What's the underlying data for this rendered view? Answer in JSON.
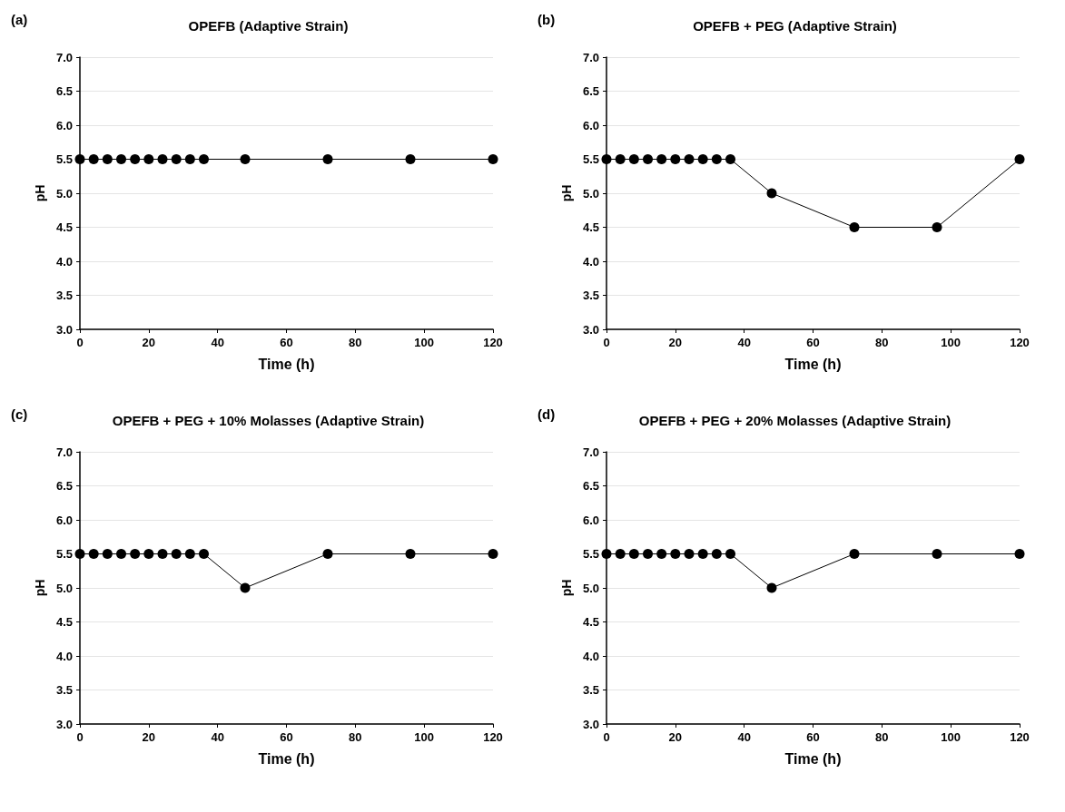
{
  "chart_data": [
    {
      "type": "line",
      "title": "OPEFB (Adaptive Strain)",
      "annotations": [
        "(a)"
      ],
      "xlabel": "Time (h)",
      "ylabel": "pH",
      "x": [
        0,
        4,
        8,
        12,
        16,
        20,
        24,
        28,
        32,
        36,
        48,
        72,
        96,
        120
      ],
      "series": [
        {
          "color": "#000000",
          "values": [
            5.5,
            5.5,
            5.5,
            5.5,
            5.5,
            5.5,
            5.5,
            5.5,
            5.5,
            5.5,
            5.5,
            5.5,
            5.5,
            5.5
          ]
        }
      ],
      "xlim": [
        0,
        120
      ],
      "xticks": [
        0,
        20,
        40,
        60,
        80,
        100,
        120
      ],
      "ylim": [
        3,
        7
      ],
      "yticks": [
        {
          "value": 3,
          "label": "3.0"
        },
        3.5,
        {
          "value": 4,
          "label": "4.0"
        },
        4.5,
        {
          "value": 5,
          "label": "5.0"
        },
        5.5,
        {
          "value": 6,
          "label": "6.0"
        },
        6.5,
        {
          "value": 7,
          "label": "7.0"
        }
      ],
      "grid": "y",
      "marker": "circle",
      "line_style": "solid"
    },
    {
      "type": "line",
      "title": "OPEFB + PEG (Adaptive Strain)",
      "annotations": [
        "(b)"
      ],
      "xlabel": "Time (h)",
      "ylabel": "pH",
      "x": [
        0,
        4,
        8,
        12,
        16,
        20,
        24,
        28,
        32,
        36,
        48,
        72,
        96,
        120
      ],
      "series": [
        {
          "color": "#000000",
          "values": [
            5.5,
            5.5,
            5.5,
            5.5,
            5.5,
            5.5,
            5.5,
            5.5,
            5.5,
            5.5,
            5.0,
            4.5,
            4.5,
            5.5
          ]
        }
      ],
      "xlim": [
        0,
        120
      ],
      "xticks": [
        0,
        20,
        40,
        60,
        80,
        100,
        120
      ],
      "ylim": [
        3,
        7
      ],
      "yticks": [
        {
          "value": 3,
          "label": "3.0"
        },
        3.5,
        {
          "value": 4,
          "label": "4.0"
        },
        4.5,
        {
          "value": 5,
          "label": "5.0"
        },
        5.5,
        {
          "value": 6,
          "label": "6.0"
        },
        6.5,
        {
          "value": 7,
          "label": "7.0"
        }
      ],
      "grid": "y",
      "marker": "circle",
      "line_style": "solid"
    },
    {
      "type": "line",
      "title": "OPEFB + PEG + 10% Molasses (Adaptive Strain)",
      "annotations": [
        "(c)"
      ],
      "xlabel": "Time (h)",
      "ylabel": "pH",
      "x": [
        0,
        4,
        8,
        12,
        16,
        20,
        24,
        28,
        32,
        36,
        48,
        72,
        96,
        120
      ],
      "series": [
        {
          "color": "#000000",
          "values": [
            5.5,
            5.5,
            5.5,
            5.5,
            5.5,
            5.5,
            5.5,
            5.5,
            5.5,
            5.5,
            5.0,
            5.5,
            5.5,
            5.5
          ]
        }
      ],
      "xlim": [
        0,
        120
      ],
      "xticks": [
        0,
        20,
        40,
        60,
        80,
        100,
        120
      ],
      "ylim": [
        3,
        7
      ],
      "yticks": [
        {
          "value": 3,
          "label": "3.0"
        },
        3.5,
        {
          "value": 4,
          "label": "4.0"
        },
        4.5,
        {
          "value": 5,
          "label": "5.0"
        },
        5.5,
        {
          "value": 6,
          "label": "6.0"
        },
        6.5,
        {
          "value": 7,
          "label": "7.0"
        }
      ],
      "grid": "y",
      "marker": "circle",
      "line_style": "solid"
    },
    {
      "type": "line",
      "title": "OPEFB + PEG + 20% Molasses (Adaptive Strain)",
      "annotations": [
        "(d)"
      ],
      "xlabel": "Time (h)",
      "ylabel": "pH",
      "x": [
        0,
        4,
        8,
        12,
        16,
        20,
        24,
        28,
        32,
        36,
        48,
        72,
        96,
        120
      ],
      "series": [
        {
          "color": "#000000",
          "values": [
            5.5,
            5.5,
            5.5,
            5.5,
            5.5,
            5.5,
            5.5,
            5.5,
            5.5,
            5.5,
            5.0,
            5.5,
            5.5,
            5.5
          ]
        }
      ],
      "xlim": [
        0,
        120
      ],
      "xticks": [
        0,
        20,
        40,
        60,
        80,
        100,
        120
      ],
      "ylim": [
        3,
        7
      ],
      "yticks": [
        {
          "value": 3,
          "label": "3.0"
        },
        3.5,
        {
          "value": 4,
          "label": "4.0"
        },
        4.5,
        {
          "value": 5,
          "label": "5.0"
        },
        5.5,
        {
          "value": 6,
          "label": "6.0"
        },
        6.5,
        {
          "value": 7,
          "label": "7.0"
        }
      ],
      "grid": "y",
      "marker": "circle",
      "line_style": "solid"
    }
  ]
}
